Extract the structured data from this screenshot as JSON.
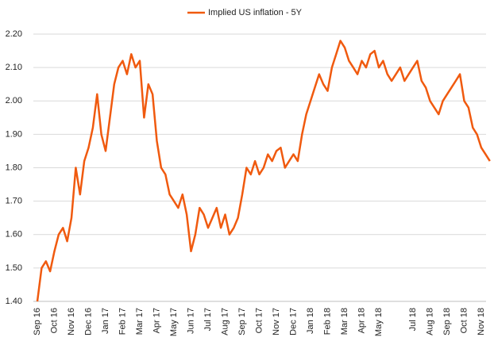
{
  "chart_data": {
    "type": "line",
    "categories": [
      "Sep 16",
      null,
      null,
      null,
      "Oct 16",
      null,
      null,
      null,
      "Nov 16",
      null,
      null,
      null,
      "Dec 16",
      null,
      null,
      null,
      "Jan 17",
      null,
      null,
      null,
      "Feb 17",
      null,
      null,
      null,
      "Mar 17",
      null,
      null,
      null,
      "Apr 17",
      null,
      null,
      null,
      "May 17",
      null,
      null,
      null,
      "Jun 17",
      null,
      null,
      null,
      "Jul 17",
      null,
      null,
      null,
      "Aug 17",
      null,
      null,
      null,
      "Sep 17",
      null,
      null,
      null,
      "Oct 17",
      null,
      null,
      null,
      "Nov 17",
      null,
      null,
      null,
      "Dec 17",
      null,
      null,
      null,
      "Jan 18",
      null,
      null,
      null,
      "Feb 18",
      null,
      null,
      null,
      "Mar 18",
      null,
      null,
      null,
      "Apr 18",
      null,
      null,
      null,
      "May 18",
      null,
      null,
      null,
      null,
      null,
      null,
      null,
      "Jul 18",
      null,
      null,
      null,
      "Aug 18",
      null,
      null,
      null,
      "Sep 18",
      null,
      null,
      null,
      "Oct 18",
      null,
      null,
      null,
      "Nov 18",
      null,
      null
    ],
    "series": [
      {
        "name": "Implied US inflation - 5Y",
        "color": "#f05a0f",
        "values": [
          1.4,
          1.5,
          1.52,
          1.49,
          1.55,
          1.6,
          1.62,
          1.58,
          1.65,
          1.8,
          1.72,
          1.82,
          1.86,
          1.92,
          2.02,
          1.9,
          1.85,
          1.95,
          2.05,
          2.1,
          2.12,
          2.08,
          2.14,
          2.1,
          2.12,
          1.95,
          2.05,
          2.02,
          1.88,
          1.8,
          1.78,
          1.72,
          1.7,
          1.68,
          1.72,
          1.66,
          1.55,
          1.6,
          1.68,
          1.66,
          1.62,
          1.65,
          1.68,
          1.62,
          1.66,
          1.6,
          1.62,
          1.65,
          1.72,
          1.8,
          1.78,
          1.82,
          1.78,
          1.8,
          1.84,
          1.82,
          1.85,
          1.86,
          1.8,
          1.82,
          1.84,
          1.82,
          1.9,
          1.96,
          2.0,
          2.04,
          2.08,
          2.05,
          2.03,
          2.1,
          2.14,
          2.18,
          2.16,
          2.12,
          2.1,
          2.08,
          2.12,
          2.1,
          2.14,
          2.15,
          2.1,
          2.12,
          2.08,
          2.06,
          2.08,
          2.1,
          2.06,
          2.08,
          2.1,
          2.12,
          2.06,
          2.04,
          2.0,
          1.98,
          1.96,
          2.0,
          2.02,
          2.04,
          2.06,
          2.08,
          2.0,
          1.98,
          1.92,
          1.9,
          1.86,
          1.84,
          1.82
        ]
      }
    ],
    "ylim": [
      1.4,
      2.2
    ],
    "yticks": [
      {
        "value": 1.4,
        "label": "1.40"
      },
      {
        "value": 1.5,
        "label": "1.50"
      },
      {
        "value": 1.6,
        "label": "1.60"
      },
      {
        "value": 1.7,
        "label": "1.70"
      },
      {
        "value": 1.8,
        "label": "1.80"
      },
      {
        "value": 1.9,
        "label": "1.90"
      },
      {
        "value": 2.0,
        "label": "2.00"
      },
      {
        "value": 2.1,
        "label": "2.10"
      },
      {
        "value": 2.2,
        "label": "2.20"
      }
    ],
    "grid": true
  }
}
